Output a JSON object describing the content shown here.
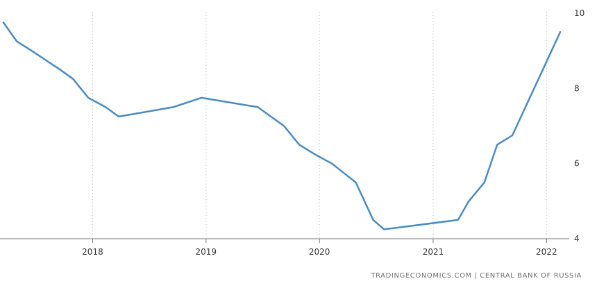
{
  "source_text": "TRADINGECONOMICS.COM  |  CENTRAL BANK OF RUSSIA",
  "colors": {
    "line": "#4b8bbe",
    "grid": "#c8c8c8",
    "axis": "#777777",
    "text": "#333333"
  },
  "chart_data": {
    "type": "line",
    "title": "",
    "xlabel": "",
    "ylabel": "",
    "x_ticks": [
      "2018",
      "2019",
      "2020",
      "2021",
      "2022"
    ],
    "y_ticks": [
      4,
      6,
      8,
      10
    ],
    "xlim": [
      "2017-03-20",
      "2022-03-15"
    ],
    "ylim": [
      4,
      10
    ],
    "grid": "vertical dotted at year ticks",
    "y_axis_side": "right",
    "series": [
      {
        "points": [
          [
            "2017-03-20",
            9.75
          ],
          [
            "2017-05-02",
            9.25
          ],
          [
            "2017-06-19",
            9.0
          ],
          [
            "2017-09-18",
            8.5
          ],
          [
            "2017-10-30",
            8.25
          ],
          [
            "2017-12-18",
            7.75
          ],
          [
            "2018-02-12",
            7.5
          ],
          [
            "2018-03-26",
            7.25
          ],
          [
            "2018-09-17",
            7.5
          ],
          [
            "2018-12-17",
            7.75
          ],
          [
            "2019-06-17",
            7.5
          ],
          [
            "2019-07-29",
            7.25
          ],
          [
            "2019-09-09",
            7.0
          ],
          [
            "2019-10-28",
            6.5
          ],
          [
            "2019-12-16",
            6.25
          ],
          [
            "2020-02-10",
            6.0
          ],
          [
            "2020-04-27",
            5.5
          ],
          [
            "2020-06-22",
            4.5
          ],
          [
            "2020-07-27",
            4.25
          ],
          [
            "2021-03-22",
            4.5
          ],
          [
            "2021-04-26",
            5.0
          ],
          [
            "2021-06-15",
            5.5
          ],
          [
            "2021-07-26",
            6.5
          ],
          [
            "2021-09-13",
            6.75
          ],
          [
            "2021-10-25",
            7.5
          ],
          [
            "2021-12-20",
            8.5
          ],
          [
            "2022-02-14",
            9.5
          ]
        ]
      }
    ]
  }
}
